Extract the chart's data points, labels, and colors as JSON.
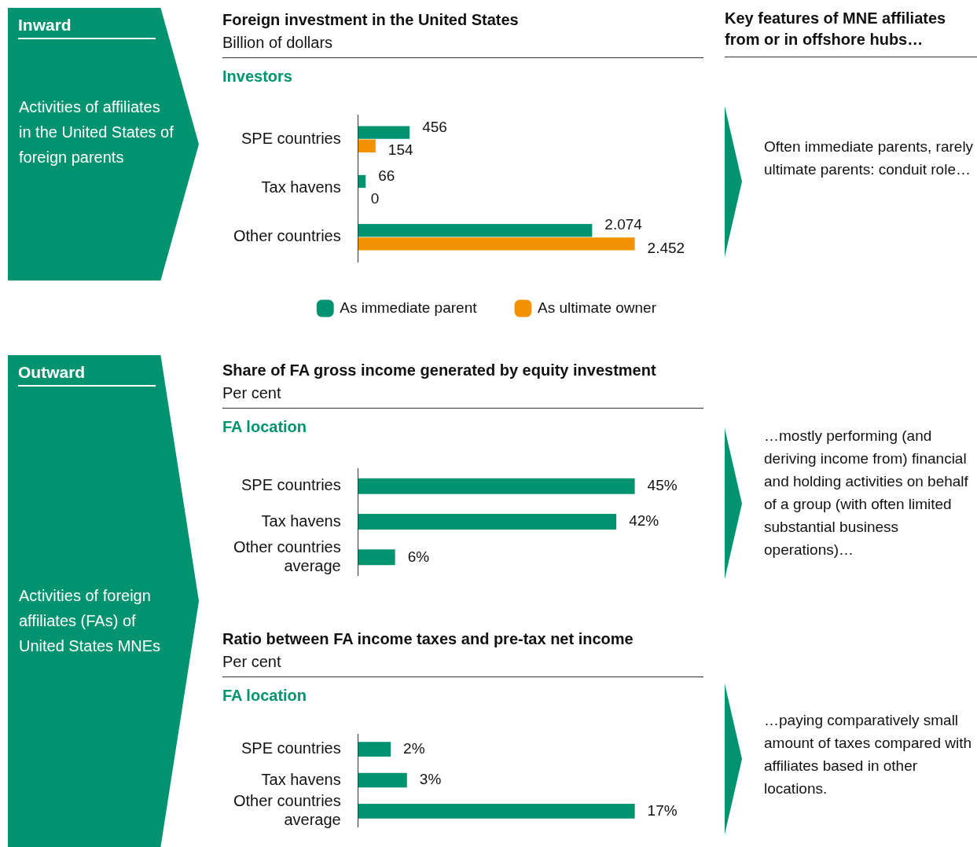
{
  "chart_data": [
    {
      "type": "other",
      "title": "Inward",
      "annotations": [
        "Activities of affiliates in the United States of foreign parents"
      ]
    },
    {
      "type": "bar",
      "orientation": "horizontal",
      "title": "Foreign investment in the United States",
      "subtitle": "Billion of dollars",
      "ylabel": "Investors",
      "categories": [
        "SPE countries",
        "Tax havens",
        "Other countries"
      ],
      "series": [
        {
          "name": "As immediate parent",
          "color": "#00936f",
          "values": [
            456,
            66,
            2074
          ],
          "value_labels": [
            "456",
            "66",
            "2.074"
          ]
        },
        {
          "name": "As ultimate owner",
          "color": "#f39200",
          "values": [
            154,
            0,
            2452
          ],
          "value_labels": [
            "154",
            "0",
            "2.452"
          ]
        }
      ],
      "legend": "bottom",
      "tick_labels": "y"
    },
    {
      "type": "other",
      "title": "Key features of MNE affiliates from or in offshore hubs…",
      "annotations": [
        "Often immediate parents, rarely ultimate parents: conduit role…"
      ]
    },
    {
      "type": "other",
      "title": "Outward",
      "annotations": [
        "Activities of foreign affiliates (FAs) of United States MNEs"
      ]
    },
    {
      "type": "bar",
      "orientation": "horizontal",
      "title": "Share of FA gross income generated by equity investment",
      "subtitle": "Per cent",
      "ylabel": "FA location",
      "categories": [
        "SPE countries",
        "Tax havens",
        "Other countries average"
      ],
      "values": [
        45,
        42,
        6
      ],
      "value_labels": [
        "45%",
        "42%",
        "6%"
      ],
      "color": "#00936f",
      "tick_labels": "y"
    },
    {
      "type": "other",
      "annotations": [
        "…mostly performing (and deriving income from) financial and holding activities on behalf of a group (with often limited substantial business operations)…"
      ]
    },
    {
      "type": "bar",
      "orientation": "horizontal",
      "title": "Ratio between FA income taxes and pre-tax net income",
      "subtitle": "Per cent",
      "ylabel": "FA location",
      "categories": [
        "SPE countries",
        "Tax havens",
        "Other countries average"
      ],
      "values": [
        2,
        3,
        17
      ],
      "value_labels": [
        "2%",
        "3%",
        "17%"
      ],
      "color": "#00936f",
      "tick_labels": "y"
    },
    {
      "type": "other",
      "annotations": [
        "…paying comparatively small amount of taxes compared with affiliates based in other locations."
      ]
    }
  ]
}
